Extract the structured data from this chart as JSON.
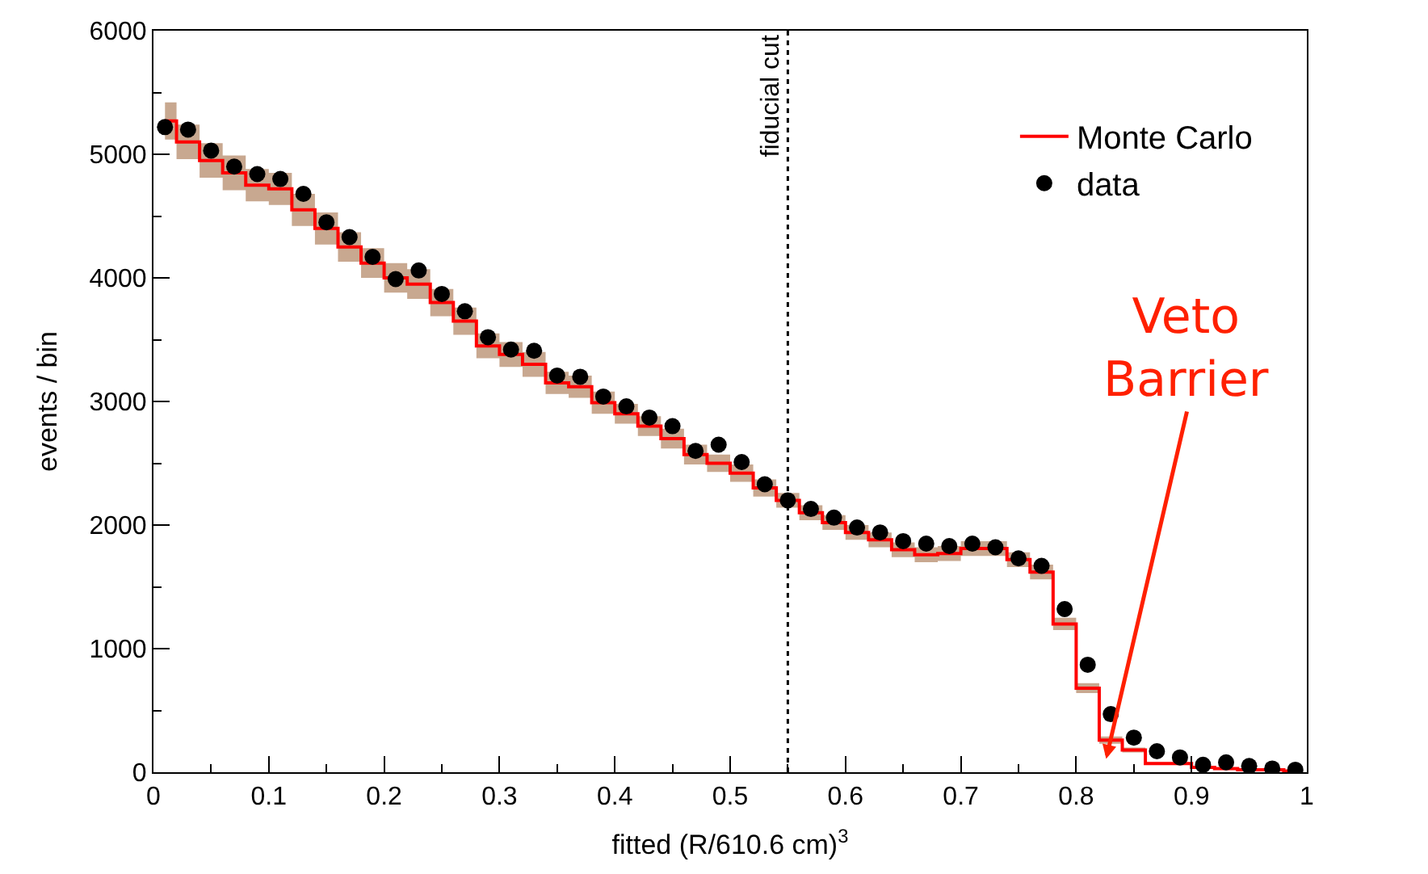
{
  "chart_data": {
    "type": "scatter",
    "xlabel": "fitted (R/610.6 cm)$^{3}$",
    "ylabel": "events / bin",
    "x": [
      0.01,
      0.03,
      0.05,
      0.07,
      0.09,
      0.11,
      0.13,
      0.15,
      0.17,
      0.19,
      0.21,
      0.23,
      0.25,
      0.27,
      0.29,
      0.31,
      0.33,
      0.35,
      0.37,
      0.39,
      0.41,
      0.43,
      0.45,
      0.47,
      0.49,
      0.51,
      0.53,
      0.55,
      0.57,
      0.59,
      0.61,
      0.63,
      0.65,
      0.67,
      0.69,
      0.71,
      0.73,
      0.75,
      0.77,
      0.79,
      0.81,
      0.83,
      0.85,
      0.87,
      0.89,
      0.91,
      0.93,
      0.95,
      0.97,
      0.99
    ],
    "series": [
      {
        "name": "data",
        "color": "#000000",
        "marker": "circle",
        "values": [
          5220,
          5200,
          5030,
          4900,
          4840,
          4800,
          4680,
          4450,
          4330,
          4170,
          3990,
          4060,
          3870,
          3730,
          3520,
          3420,
          3410,
          3210,
          3200,
          3040,
          2960,
          2870,
          2800,
          2600,
          2650,
          2510,
          2330,
          2200,
          2130,
          2060,
          1980,
          1940,
          1870,
          1850,
          1830,
          1850,
          1820,
          1730,
          1670,
          1320,
          870,
          470,
          280,
          170,
          120,
          60,
          80,
          50,
          30,
          20
        ]
      },
      {
        "name": "Monte Carlo",
        "type": "step",
        "color": "#ff0000",
        "values": [
          5270,
          5100,
          4950,
          4850,
          4750,
          4720,
          4550,
          4400,
          4250,
          4120,
          4000,
          3950,
          3800,
          3650,
          3450,
          3380,
          3300,
          3150,
          3120,
          2990,
          2900,
          2800,
          2700,
          2570,
          2500,
          2420,
          2300,
          2200,
          2100,
          2020,
          1940,
          1880,
          1800,
          1760,
          1770,
          1810,
          1810,
          1720,
          1620,
          1200,
          680,
          260,
          180,
          70,
          70,
          40,
          30,
          20,
          20,
          10
        ],
        "lower": [
          5120,
          4960,
          4810,
          4710,
          4620,
          4590,
          4420,
          4270,
          4130,
          4000,
          3880,
          3830,
          3690,
          3540,
          3350,
          3280,
          3200,
          3060,
          3030,
          2900,
          2820,
          2720,
          2620,
          2490,
          2430,
          2350,
          2230,
          2140,
          2040,
          1960,
          1880,
          1820,
          1740,
          1700,
          1710,
          1750,
          1750,
          1660,
          1560,
          1150,
          640,
          230,
          160,
          60,
          60,
          30,
          20,
          10,
          10,
          0
        ],
        "upper": [
          5420,
          5240,
          5090,
          4990,
          4880,
          4850,
          4680,
          4530,
          4370,
          4240,
          4120,
          4070,
          3910,
          3760,
          3550,
          3480,
          3400,
          3240,
          3210,
          3080,
          2980,
          2880,
          2780,
          2650,
          2570,
          2490,
          2370,
          2260,
          2160,
          2080,
          2000,
          1940,
          1860,
          1820,
          1830,
          1870,
          1870,
          1780,
          1680,
          1250,
          720,
          290,
          200,
          80,
          80,
          50,
          40,
          30,
          25,
          20
        ]
      }
    ],
    "xlim": [
      0,
      1
    ],
    "ylim": [
      0,
      6000
    ],
    "xticks": [
      0,
      0.1,
      0.2,
      0.3,
      0.4,
      0.5,
      0.6,
      0.7,
      0.8,
      0.9,
      1
    ],
    "yticks": [
      0,
      1000,
      2000,
      3000,
      4000,
      5000,
      6000
    ],
    "legend": "top right",
    "ref_lines": [
      {
        "axis": "x",
        "value": 0.55,
        "label": "fiducial cut",
        "color": "#000000",
        "line_style": "dotted"
      }
    ],
    "annotations": [
      "Veto\nBarrier"
    ]
  }
}
